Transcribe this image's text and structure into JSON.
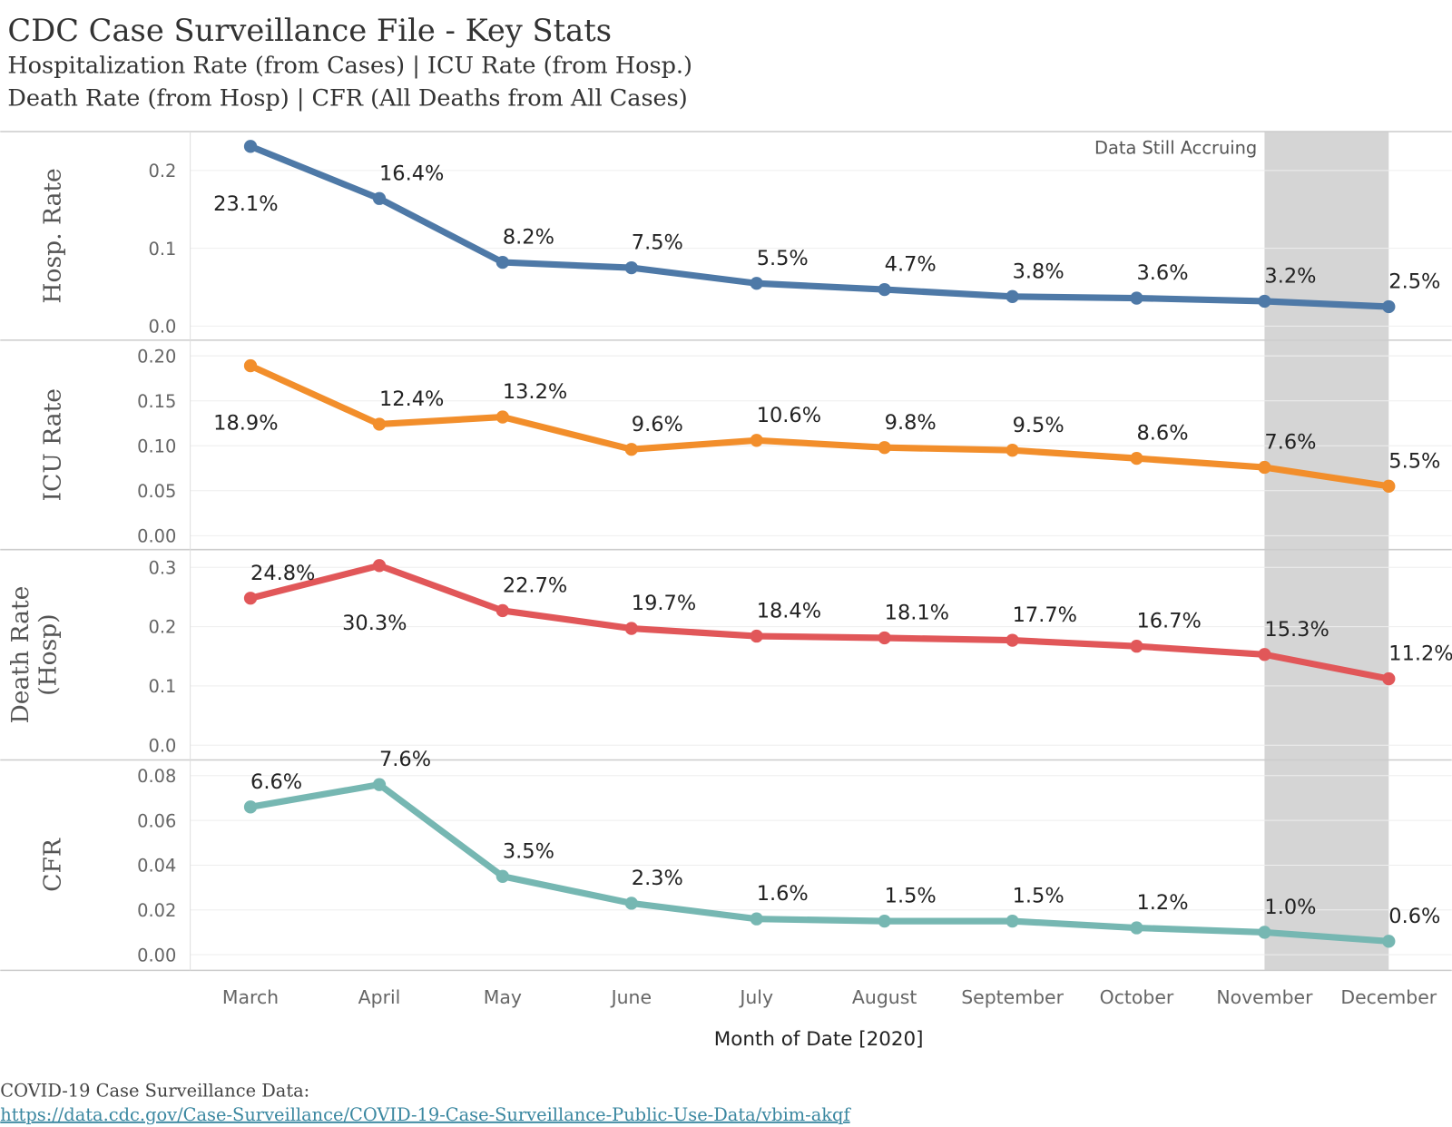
{
  "header": {
    "title": "CDC Case Surveillance File - Key Stats",
    "subtitle1": "Hospitalization Rate (from Cases) | ICU Rate (from Hosp.)",
    "subtitle2": "Death Rate (from Hosp) | CFR (All Deaths from All Cases)"
  },
  "annotation": "Data Still Accruing",
  "footer": {
    "source_label": "COVID-19 Case Surveillance Data:",
    "link": "https://data.cdc.gov/Case-Surveillance/COVID-19-Case-Surveillance-Public-Use-Data/vbim-akqf"
  },
  "chart_data": {
    "type": "line",
    "xlabel": "Month of Date [2020]",
    "categories": [
      "March",
      "April",
      "May",
      "June",
      "July",
      "August",
      "September",
      "October",
      "November",
      "December"
    ],
    "shaded_categories": [
      "November",
      "December"
    ],
    "series": [
      {
        "name": "Hosp. Rate",
        "ylabel": [
          "Hosp. Rate"
        ],
        "color": "#4e79a7",
        "ylim": [
          -0.018,
          0.25
        ],
        "ticks": [
          "0.0",
          "0.1",
          "0.2"
        ],
        "tick_values": [
          0,
          0.1,
          0.2
        ],
        "values": [
          0.231,
          0.164,
          0.082,
          0.075,
          0.055,
          0.047,
          0.038,
          0.036,
          0.032,
          0.025
        ],
        "labels": [
          "23.1%",
          "16.4%",
          "8.2%",
          "7.5%",
          "5.5%",
          "4.7%",
          "3.8%",
          "3.6%",
          "3.2%",
          "2.5%"
        ],
        "label_pos": [
          "below",
          "above",
          "above",
          "above",
          "above",
          "above",
          "above",
          "above",
          "above",
          "above"
        ]
      },
      {
        "name": "ICU Rate",
        "ylabel": [
          "ICU Rate"
        ],
        "color": "#f28e2b",
        "ylim": [
          -0.0155,
          0.2175
        ],
        "ticks": [
          "0.00",
          "0.05",
          "0.10",
          "0.15",
          "0.20"
        ],
        "tick_values": [
          0,
          0.05,
          0.1,
          0.15,
          0.2
        ],
        "values": [
          0.189,
          0.124,
          0.132,
          0.096,
          0.106,
          0.098,
          0.095,
          0.086,
          0.076,
          0.055
        ],
        "labels": [
          "18.9%",
          "12.4%",
          "13.2%",
          "9.6%",
          "10.6%",
          "9.8%",
          "9.5%",
          "8.6%",
          "7.6%",
          "5.5%"
        ],
        "label_pos": [
          "below",
          "above",
          "above",
          "above",
          "above",
          "above",
          "above",
          "above",
          "above",
          "above"
        ]
      },
      {
        "name": "Death Rate (Hosp)",
        "ylabel": [
          "Death Rate",
          "(Hosp)"
        ],
        "color": "#e15759",
        "ylim": [
          -0.025,
          0.33
        ],
        "ticks": [
          "0.0",
          "0.1",
          "0.2",
          "0.3"
        ],
        "tick_values": [
          0,
          0.1,
          0.2,
          0.3
        ],
        "values": [
          0.248,
          0.303,
          0.227,
          0.197,
          0.184,
          0.181,
          0.177,
          0.167,
          0.153,
          0.112
        ],
        "labels": [
          "24.8%",
          "30.3%",
          "22.7%",
          "19.7%",
          "18.4%",
          "18.1%",
          "17.7%",
          "16.7%",
          "15.3%",
          "11.2%"
        ],
        "label_pos": [
          "above",
          "below",
          "above",
          "above",
          "above",
          "above",
          "above",
          "above",
          "above",
          "above"
        ]
      },
      {
        "name": "CFR",
        "ylabel": [
          "CFR"
        ],
        "color": "#76b7b2",
        "ylim": [
          -0.007,
          0.087
        ],
        "ticks": [
          "0.00",
          "0.02",
          "0.04",
          "0.06",
          "0.08"
        ],
        "tick_values": [
          0,
          0.02,
          0.04,
          0.06,
          0.08
        ],
        "values": [
          0.066,
          0.076,
          0.035,
          0.023,
          0.016,
          0.015,
          0.015,
          0.012,
          0.01,
          0.006
        ],
        "labels": [
          "6.6%",
          "7.6%",
          "3.5%",
          "2.3%",
          "1.6%",
          "1.5%",
          "1.5%",
          "1.2%",
          "1.0%",
          "0.6%"
        ],
        "label_pos": [
          "above",
          "above",
          "above",
          "above",
          "above",
          "above",
          "above",
          "above",
          "above",
          "above"
        ]
      }
    ]
  }
}
